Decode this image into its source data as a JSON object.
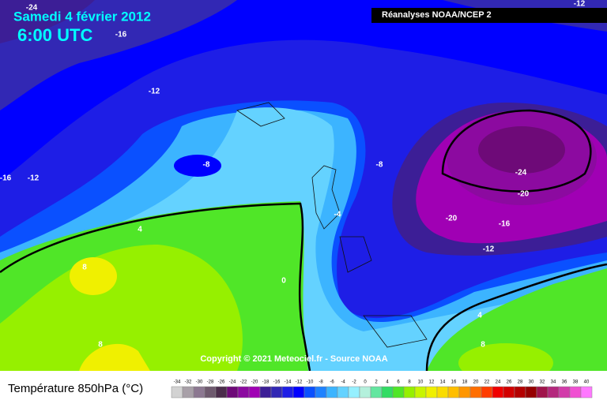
{
  "header": {
    "date": "Samedi 4 février 2012",
    "time": "6:00 UTC",
    "source": "Réanalyses NOAA/NCEP 2"
  },
  "copyright": "Copyright © 2021 Meteociel.fr - Source NOAA",
  "contour_labels": [
    -24,
    -16,
    -12,
    -12,
    -8,
    -8,
    -16,
    -12,
    -24,
    -20,
    -20,
    -16,
    -12,
    -4,
    4,
    0,
    8,
    8,
    4,
    8
  ],
  "legend": {
    "title": "Température 850hPa (°C)",
    "values": [
      -34,
      -32,
      -30,
      -28,
      -26,
      -24,
      -22,
      -20,
      -18,
      -16,
      -14,
      -12,
      -10,
      -8,
      -6,
      -4,
      -2,
      0,
      2,
      4,
      6,
      8,
      10,
      12,
      14,
      16,
      18,
      20,
      22,
      24,
      26,
      28,
      30,
      32,
      34,
      36,
      38,
      40
    ],
    "colors": [
      "#d2d2d2",
      "#a8a0a8",
      "#8c7891",
      "#6e5a6e",
      "#4b2d4b",
      "#6e0a78",
      "#8c0aa0",
      "#a000b4",
      "#3c1e96",
      "#3228b4",
      "#1e1ee6",
      "#0000ff",
      "#0a50ff",
      "#1e82ff",
      "#3cb4ff",
      "#64d2ff",
      "#96f0ff",
      "#b4f0dc",
      "#64e6a0",
      "#32dc64",
      "#50e628",
      "#96f000",
      "#c8f500",
      "#f0f000",
      "#fadc00",
      "#ffbe00",
      "#ff9600",
      "#ff6e00",
      "#ff3c00",
      "#f00000",
      "#d20000",
      "#b40000",
      "#960000",
      "#a0144b",
      "#b4287d",
      "#d23caa",
      "#f050d2",
      "#ff78ff"
    ]
  }
}
